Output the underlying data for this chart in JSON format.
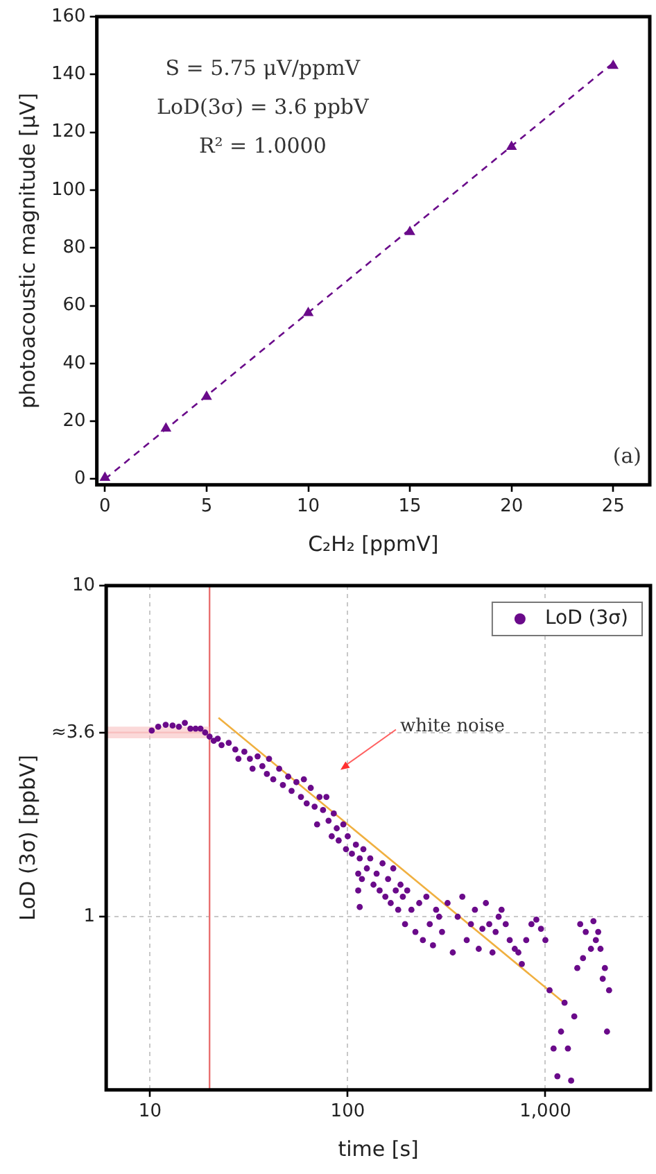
{
  "chart_data": [
    {
      "type": "scatter",
      "xlabel": "C₂H₂ [ppmV]",
      "ylabel": "photoacoustic magnitude [μV]",
      "xlim": [
        -0.4,
        26.8
      ],
      "ylim": [
        -2,
        160
      ],
      "xticks": [
        0,
        5,
        10,
        15,
        20,
        25
      ],
      "yticks": [
        0,
        20,
        40,
        60,
        80,
        100,
        120,
        140,
        160
      ],
      "grid": false,
      "legend": false,
      "series": [
        {
          "type": "scatter",
          "color": "#6a0a8a",
          "marker": "triangle",
          "x": [
            0,
            3,
            5,
            10,
            15,
            20,
            25
          ],
          "values": [
            0.5,
            17.5,
            28.5,
            57.5,
            85.5,
            115,
            143
          ]
        },
        {
          "type": "line",
          "color": "#6a0a8a",
          "line_style": "dashed",
          "x": [
            0,
            25
          ],
          "values": [
            0,
            144
          ]
        }
      ],
      "annotations": [
        "S = 5.75 μV/ppmV",
        "LoD(3σ) = 3.6 ppbV",
        "R² = 1.0000",
        "(a)"
      ]
    },
    {
      "type": "scatter",
      "xlabel": "time [s]",
      "ylabel": "LoD (3σ) [ppbV]",
      "log": "xy",
      "xlim": [
        6,
        3400
      ],
      "ylim": [
        0.3,
        10
      ],
      "xticks": [
        10,
        100,
        {
          "value": 1000,
          "label": "1,000"
        }
      ],
      "yticks": [
        1,
        {
          "value": 3.6,
          "label": "≈3.6"
        },
        10
      ],
      "grid": true,
      "legend": "top right",
      "series": [
        {
          "type": "line",
          "color": "#f8c0c0",
          "x": [
            6,
            20
          ],
          "values": [
            3.6,
            3.6
          ],
          "lower": [
            3.46,
            3.46
          ],
          "upper": [
            3.75,
            3.75
          ]
        },
        {
          "type": "scatter",
          "name": "LoD (3σ)",
          "color": "#6a0a8a",
          "marker": "circle",
          "x": [
            10.2,
            11,
            12,
            13,
            14,
            15,
            16,
            17,
            18,
            19,
            20,
            21,
            22,
            23,
            25,
            27,
            28,
            30,
            32,
            33,
            35,
            37,
            39,
            40,
            42,
            45,
            47,
            50,
            52,
            55,
            58,
            60,
            62,
            65,
            68,
            70,
            72,
            75,
            78,
            80,
            83,
            85,
            88,
            90,
            95,
            98,
            100,
            105,
            110,
            113,
            113,
            115,
            115,
            118,
            120,
            125,
            130,
            135,
            140,
            145,
            150,
            155,
            160,
            165,
            170,
            175,
            180,
            185,
            190,
            195,
            200,
            210,
            220,
            230,
            240,
            250,
            260,
            270,
            280,
            290,
            300,
            320,
            340,
            360,
            380,
            400,
            420,
            440,
            460,
            480,
            500,
            520,
            540,
            560,
            580,
            600,
            630,
            660,
            700,
            730,
            760,
            800,
            850,
            900,
            950,
            1000,
            1050,
            1100,
            1150,
            1200,
            1250,
            1300,
            1350,
            1400,
            1450,
            1500,
            1550,
            1600,
            1700,
            1750,
            1800,
            1850,
            1900,
            1950,
            2000,
            2050,
            2100
          ],
          "values": [
            3.65,
            3.75,
            3.8,
            3.78,
            3.75,
            3.85,
            3.7,
            3.7,
            3.7,
            3.6,
            3.5,
            3.4,
            3.45,
            3.3,
            3.35,
            3.2,
            3.0,
            3.15,
            3.0,
            2.8,
            3.05,
            2.85,
            2.7,
            3.0,
            2.6,
            2.8,
            2.5,
            2.65,
            2.4,
            2.55,
            2.3,
            2.6,
            2.2,
            2.45,
            2.15,
            1.9,
            2.3,
            2.1,
            2.3,
            1.95,
            1.75,
            2.05,
            1.85,
            1.7,
            1.9,
            1.6,
            1.75,
            1.55,
            1.65,
            1.2,
            1.35,
            1.07,
            1.5,
            1.3,
            1.6,
            1.4,
            1.5,
            1.25,
            1.35,
            1.2,
            1.45,
            1.15,
            1.3,
            1.1,
            1.4,
            1.2,
            1.05,
            1.25,
            1.15,
            0.95,
            1.2,
            1.05,
            0.9,
            1.1,
            0.85,
            1.15,
            0.95,
            0.82,
            1.05,
            1.0,
            0.9,
            1.1,
            0.78,
            1.0,
            1.15,
            0.85,
            0.95,
            1.05,
            0.8,
            0.92,
            1.1,
            0.95,
            0.78,
            0.9,
            1.0,
            1.05,
            0.95,
            0.85,
            0.8,
            0.78,
            0.72,
            0.85,
            0.95,
            0.98,
            0.92,
            0.85,
            0.6,
            0.4,
            0.33,
            0.45,
            0.55,
            0.4,
            0.32,
            0.5,
            0.7,
            0.95,
            0.75,
            0.9,
            0.8,
            0.97,
            0.85,
            0.9,
            0.8,
            0.65,
            0.7,
            0.45,
            0.6
          ]
        },
        {
          "type": "line",
          "color": "#f0b040",
          "x": [
            22.2,
            1219
          ],
          "values": [
            3.99,
            0.555
          ]
        }
      ],
      "ref_lines": [
        {
          "axis": "x",
          "value": 20,
          "color": "#e87070"
        }
      ],
      "annotations": [
        "white noise"
      ]
    }
  ]
}
